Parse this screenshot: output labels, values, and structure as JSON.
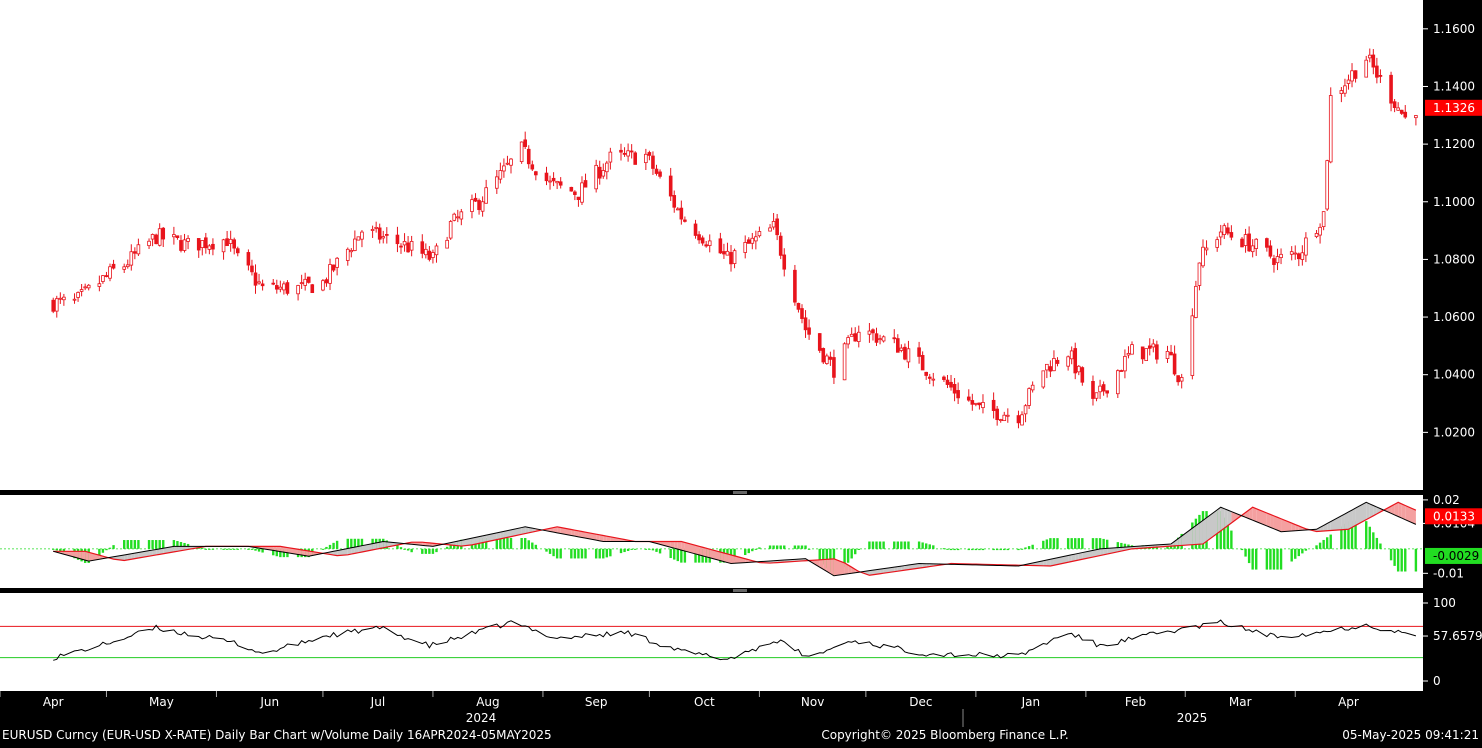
{
  "chart_data": [
    {
      "type": "candlestick",
      "panel": "price",
      "series_name": "EURUSD Curncy",
      "x_axis_months": [
        "Apr",
        "May",
        "Jun",
        "Jul",
        "Aug",
        "Sep",
        "Oct",
        "Nov",
        "Dec",
        "Jan",
        "Feb",
        "Mar",
        "Apr"
      ],
      "year_labels": [
        "2024",
        "2025"
      ],
      "y_ticks": [
        "1.1600",
        "1.1400",
        "1.1200",
        "1.1000",
        "1.0800",
        "1.0600",
        "1.0400",
        "1.0200"
      ],
      "ylim": [
        1.0,
        1.17
      ],
      "last_value_label": "1.1326",
      "anchors": [
        [
          "2024-04-16",
          1.065
        ],
        [
          "2024-04-22",
          1.065
        ],
        [
          "2024-05-03",
          1.076
        ],
        [
          "2024-05-06",
          1.078
        ],
        [
          "2024-05-15",
          1.088
        ],
        [
          "2024-05-24",
          1.085
        ],
        [
          "2024-06-04",
          1.087
        ],
        [
          "2024-06-07",
          1.08
        ],
        [
          "2024-06-14",
          1.07
        ],
        [
          "2024-06-25",
          1.07
        ],
        [
          "2024-07-01",
          1.072
        ],
        [
          "2024-07-12",
          1.09
        ],
        [
          "2024-07-24",
          1.085
        ],
        [
          "2024-08-01",
          1.08
        ],
        [
          "2024-08-06",
          1.092
        ],
        [
          "2024-08-14",
          1.1
        ],
        [
          "2024-08-26",
          1.118
        ],
        [
          "2024-09-03",
          1.106
        ],
        [
          "2024-09-11",
          1.103
        ],
        [
          "2024-09-20",
          1.115
        ],
        [
          "2024-09-30",
          1.116
        ],
        [
          "2024-10-10",
          1.095
        ],
        [
          "2024-10-23",
          1.08
        ],
        [
          "2024-11-05",
          1.091
        ],
        [
          "2024-11-14",
          1.056
        ],
        [
          "2024-11-22",
          1.042
        ],
        [
          "2024-11-29",
          1.056
        ],
        [
          "2024-12-10",
          1.05
        ],
        [
          "2024-12-20",
          1.04
        ],
        [
          "2025-01-02",
          1.028
        ],
        [
          "2025-01-13",
          1.026
        ],
        [
          "2025-01-20",
          1.042
        ],
        [
          "2025-01-27",
          1.048
        ],
        [
          "2025-02-03",
          1.03
        ],
        [
          "2025-02-14",
          1.048
        ],
        [
          "2025-02-24",
          1.048
        ],
        [
          "2025-02-28",
          1.038
        ],
        [
          "2025-03-05",
          1.08
        ],
        [
          "2025-03-11",
          1.09
        ],
        [
          "2025-03-20",
          1.085
        ],
        [
          "2025-03-27",
          1.08
        ],
        [
          "2025-04-02",
          1.082
        ],
        [
          "2025-04-09",
          1.096
        ],
        [
          "2025-04-11",
          1.136
        ],
        [
          "2025-04-21",
          1.15
        ],
        [
          "2025-05-02",
          1.129
        ],
        [
          "2025-05-05",
          1.1326
        ]
      ]
    },
    {
      "type": "line",
      "panel": "macd",
      "y_ticks": [
        "0.02",
        "0.0104",
        "-0.01"
      ],
      "ylim": [
        -0.016,
        0.022
      ],
      "value_labels": [
        "0.0133",
        "-0.0029"
      ],
      "macd_anchors": [
        [
          "2024-04-16",
          -0.001
        ],
        [
          "2024-04-26",
          -0.005
        ],
        [
          "2024-05-20",
          0.001
        ],
        [
          "2024-06-10",
          0.001
        ],
        [
          "2024-06-27",
          -0.003
        ],
        [
          "2024-07-18",
          0.003
        ],
        [
          "2024-08-01",
          0.001
        ],
        [
          "2024-08-27",
          0.009
        ],
        [
          "2024-09-18",
          0.003
        ],
        [
          "2024-10-01",
          0.003
        ],
        [
          "2024-10-24",
          -0.006
        ],
        [
          "2024-11-14",
          -0.004
        ],
        [
          "2024-11-22",
          -0.011
        ],
        [
          "2024-12-16",
          -0.006
        ],
        [
          "2025-01-13",
          -0.007
        ],
        [
          "2025-02-05",
          0.0
        ],
        [
          "2025-02-25",
          0.002
        ],
        [
          "2025-03-11",
          0.017
        ],
        [
          "2025-03-28",
          0.007
        ],
        [
          "2025-04-07",
          0.008
        ],
        [
          "2025-04-21",
          0.019
        ],
        [
          "2025-05-05",
          0.01
        ]
      ],
      "signal_lag_days": 9
    },
    {
      "type": "line",
      "panel": "rsi",
      "y_ticks": [
        "100",
        "57.6579",
        "0"
      ],
      "ylim": [
        0,
        100
      ],
      "levels": [
        70,
        30
      ],
      "rsi_anchors": [
        [
          "2024-04-16",
          30
        ],
        [
          "2024-04-29",
          45
        ],
        [
          "2024-05-15",
          68
        ],
        [
          "2024-06-07",
          48
        ],
        [
          "2024-06-14",
          35
        ],
        [
          "2024-07-02",
          58
        ],
        [
          "2024-07-17",
          68
        ],
        [
          "2024-07-31",
          45
        ],
        [
          "2024-08-23",
          75
        ],
        [
          "2024-09-05",
          55
        ],
        [
          "2024-09-25",
          62
        ],
        [
          "2024-10-10",
          38
        ],
        [
          "2024-10-23",
          28
        ],
        [
          "2024-11-06",
          52
        ],
        [
          "2024-11-15",
          30
        ],
        [
          "2024-11-27",
          52
        ],
        [
          "2024-12-18",
          35
        ],
        [
          "2025-01-13",
          32
        ],
        [
          "2025-01-27",
          62
        ],
        [
          "2025-02-05",
          45
        ],
        [
          "2025-02-20",
          60
        ],
        [
          "2025-03-11",
          75
        ],
        [
          "2025-03-26",
          57
        ],
        [
          "2025-04-07",
          62
        ],
        [
          "2025-04-21",
          72
        ],
        [
          "2025-05-05",
          57.6579
        ]
      ]
    }
  ],
  "footer": {
    "left": "EURUSD Curncy (EUR-USD X-RATE) Daily Bar Chart w/Volume  Daily 16APR2024-05MAY2025",
    "center": "Copyright© 2025 Bloomberg Finance L.P.",
    "right": "05-May-2025 09:41:21"
  },
  "colors": {
    "candle": "#e8141c",
    "last_value_bg": "#ff0000",
    "macd_line": "#000000",
    "signal_line": "#e8141c",
    "histogram": "#22dd22",
    "rsi_line": "#000000",
    "rsi_upper": "#e8141c",
    "rsi_lower": "#22cc22",
    "negative_label_bg": "#22dd22"
  }
}
